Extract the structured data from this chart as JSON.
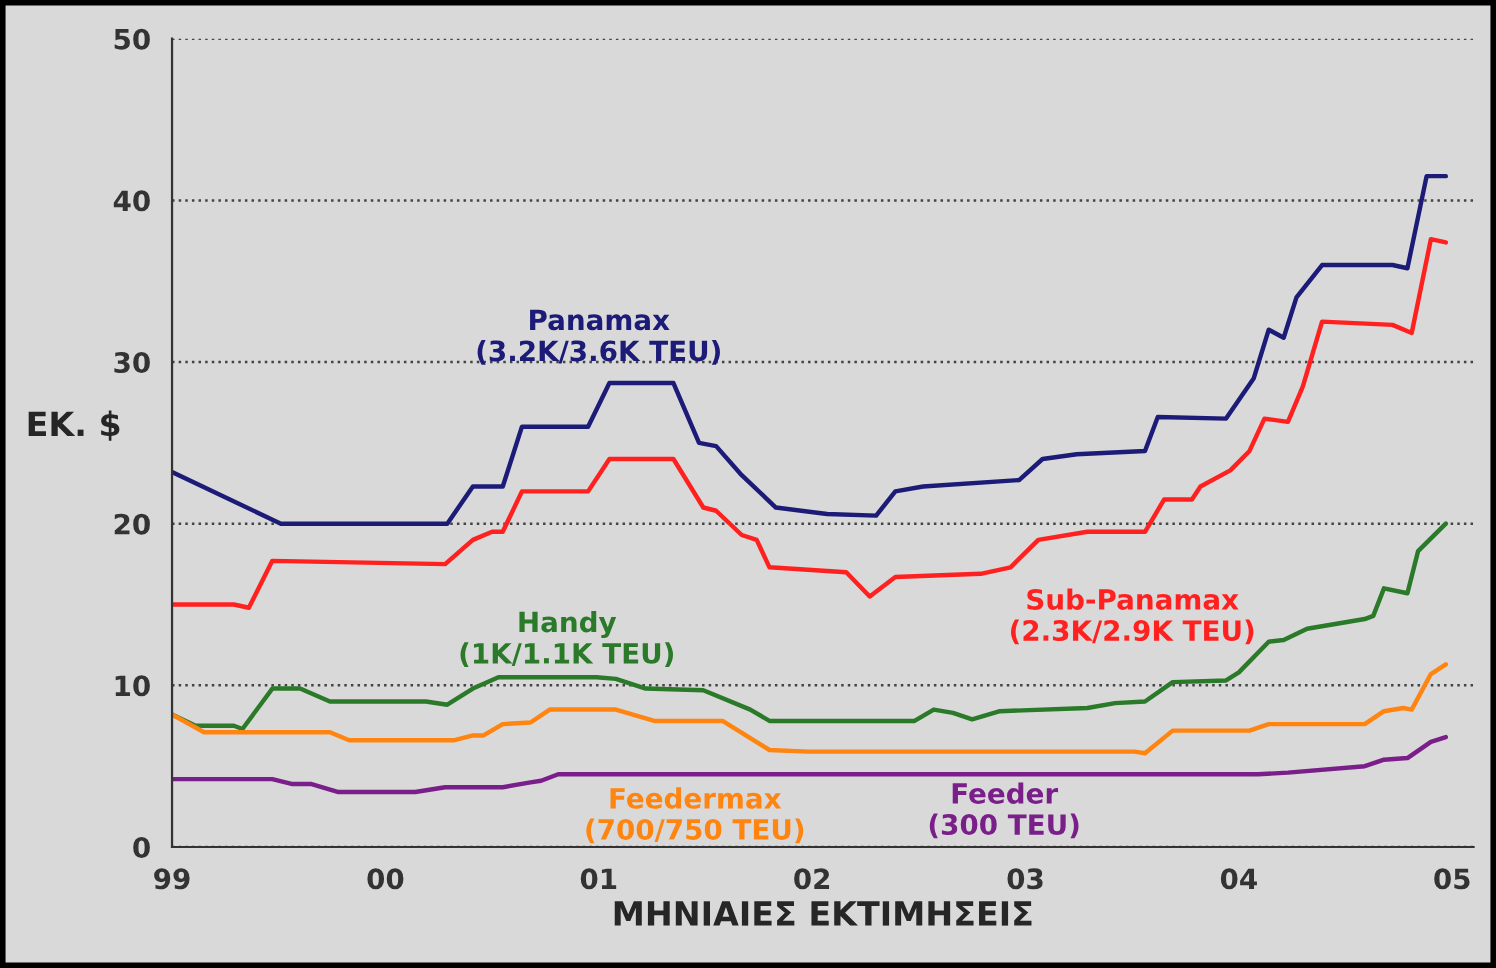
{
  "chart_data": {
    "type": "line",
    "ylabel": "ΕΚ. $",
    "xlabel": "ΜΗΝΙΑΙΕΣ ΕΚΤΙΜΗΣΕΙΣ",
    "xlim": [
      1999,
      2005.1
    ],
    "xticks": [
      {
        "value": 1999,
        "label": "99"
      },
      {
        "value": 2000,
        "label": "00"
      },
      {
        "value": 2001,
        "label": "01"
      },
      {
        "value": 2002,
        "label": "02"
      },
      {
        "value": 2003,
        "label": "03"
      },
      {
        "value": 2004,
        "label": "04"
      },
      {
        "value": 2005,
        "label": "05"
      }
    ],
    "ylim": [
      0,
      50
    ],
    "yticks": [
      0,
      10,
      20,
      30,
      40,
      50
    ],
    "grid": "y",
    "legend": false,
    "marker": "none",
    "line_style": "solid",
    "series": [
      {
        "name": "Panamax\n(3.2K/3.6K TEU)",
        "color": "#1c1c78",
        "x": [
          1999.0,
          1999.51,
          2000.29,
          2000.41,
          2000.5,
          2000.55,
          2000.64,
          2000.95,
          2001.05,
          2001.35,
          2001.47,
          2001.55,
          2001.67,
          2001.83,
          2002.07,
          2002.3,
          2002.39,
          2002.52,
          2002.97,
          2003.08,
          2003.24,
          2003.56,
          2003.62,
          2003.94,
          2004.07,
          2004.14,
          2004.21,
          2004.27,
          2004.39,
          2004.72,
          2004.79,
          2004.88,
          2004.97
        ],
        "values": [
          23.2,
          20,
          20,
          22.3,
          22.3,
          22.3,
          26,
          26,
          28.7,
          28.7,
          25,
          24.8,
          23,
          21,
          20.6,
          20.5,
          22,
          22.3,
          22.7,
          24,
          24.3,
          24.5,
          26.6,
          26.5,
          29,
          32,
          31.5,
          34,
          36,
          36,
          35.8,
          41.5,
          41.5
        ]
      },
      {
        "name": "Sub-Panamax\n(2.3K/2.9K TEU)",
        "color": "#ff2020",
        "x": [
          1999.0,
          1999.29,
          1999.36,
          1999.47,
          2000.28,
          2000.41,
          2000.5,
          2000.55,
          2000.64,
          2000.95,
          2001.05,
          2001.35,
          2001.49,
          2001.55,
          2001.67,
          2001.74,
          2001.8,
          2002.16,
          2002.27,
          2002.39,
          2002.79,
          2002.93,
          2003.06,
          2003.29,
          2003.56,
          2003.65,
          2003.78,
          2003.82,
          2003.96,
          2004.05,
          2004.12,
          2004.23,
          2004.3,
          2004.39,
          2004.72,
          2004.81,
          2004.9,
          2004.97
        ],
        "values": [
          15,
          15,
          14.8,
          17.7,
          17.5,
          19,
          19.5,
          19.5,
          22,
          22,
          24,
          24,
          21,
          20.8,
          19.3,
          19,
          17.3,
          17,
          15.5,
          16.7,
          16.9,
          17.3,
          19,
          19.5,
          19.5,
          21.5,
          21.5,
          22.3,
          23.3,
          24.5,
          26.5,
          26.3,
          28.5,
          32.5,
          32.3,
          31.8,
          37.6,
          37.4
        ]
      },
      {
        "name": "Handy\n(1K/1.1K TEU)",
        "color": "#2a7a2a",
        "x": [
          1999.0,
          1999.11,
          1999.29,
          1999.33,
          1999.47,
          1999.6,
          1999.74,
          2000.19,
          2000.29,
          2000.41,
          2000.53,
          2000.99,
          2001.08,
          2001.22,
          2001.49,
          2001.71,
          2001.8,
          2002.48,
          2002.57,
          2002.66,
          2002.75,
          2002.88,
          2003.29,
          2003.42,
          2003.56,
          2003.69,
          2003.94,
          2004.0,
          2004.14,
          2004.21,
          2004.32,
          2004.59,
          2004.63,
          2004.68,
          2004.79,
          2004.84,
          2004.97
        ],
        "values": [
          8.2,
          7.5,
          7.5,
          7.3,
          9.8,
          9.8,
          9,
          9,
          8.8,
          9.8,
          10.5,
          10.5,
          10.4,
          9.8,
          9.7,
          8.5,
          7.8,
          7.8,
          8.5,
          8.3,
          7.9,
          8.4,
          8.6,
          8.9,
          9,
          10.2,
          10.3,
          10.8,
          12.7,
          12.8,
          13.5,
          14.1,
          14.3,
          16,
          15.7,
          18.3,
          20
        ]
      },
      {
        "name": "Feedermax\n(700/750 TEU)",
        "color": "#ff8410",
        "x": [
          1999.0,
          1999.15,
          1999.74,
          1999.83,
          2000.32,
          2000.41,
          2000.46,
          2000.55,
          2000.68,
          2000.77,
          2001.08,
          2001.26,
          2001.58,
          2001.8,
          2001.98,
          2003.51,
          2003.56,
          2003.69,
          2004.05,
          2004.14,
          2004.59,
          2004.68,
          2004.77,
          2004.81,
          2004.9,
          2004.97
        ],
        "values": [
          8.2,
          7.1,
          7.1,
          6.6,
          6.6,
          6.9,
          6.9,
          7.6,
          7.7,
          8.5,
          8.5,
          7.8,
          7.8,
          6,
          5.9,
          5.9,
          5.8,
          7.2,
          7.2,
          7.6,
          7.6,
          8.4,
          8.6,
          8.5,
          10.7,
          11.3
        ]
      },
      {
        "name": "Feeder\n(300 TEU)",
        "color": "#7a1f8a",
        "x": [
          1999.0,
          1999.47,
          1999.56,
          1999.65,
          1999.78,
          2000.14,
          2000.28,
          2000.55,
          2000.68,
          2000.73,
          2000.81,
          2004.09,
          2004.23,
          2004.59,
          2004.68,
          2004.79,
          2004.9,
          2004.97
        ],
        "values": [
          4.2,
          4.2,
          3.9,
          3.9,
          3.4,
          3.4,
          3.7,
          3.7,
          4.0,
          4.1,
          4.5,
          4.5,
          4.6,
          5.0,
          5.4,
          5.5,
          6.5,
          6.8
        ]
      }
    ]
  }
}
